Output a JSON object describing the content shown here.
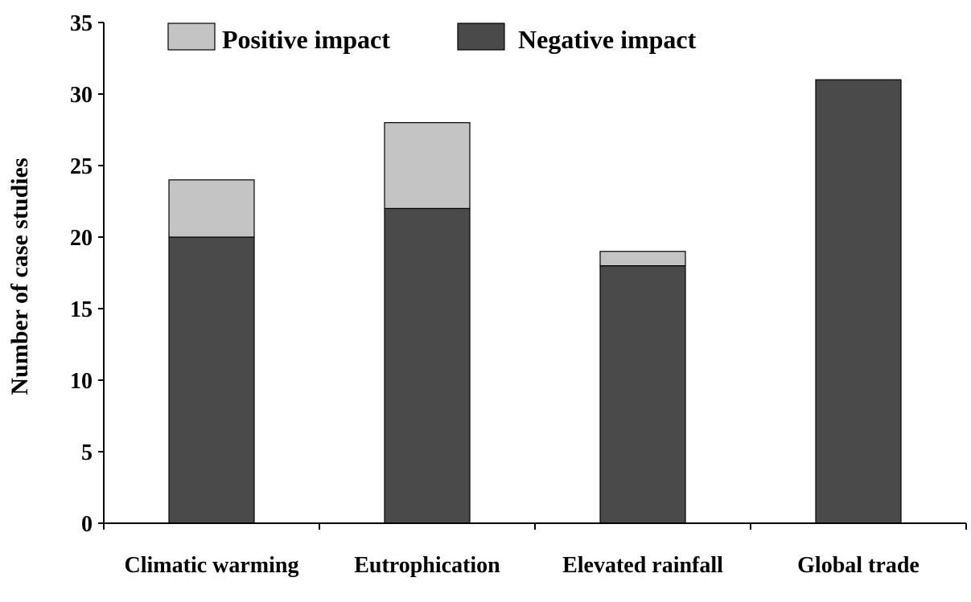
{
  "chart_data": {
    "type": "bar",
    "stacked": true,
    "title": "",
    "xlabel": "",
    "ylabel": "Number of case studies",
    "ylim": [
      0,
      35
    ],
    "yticks": [
      0,
      5,
      10,
      15,
      20,
      25,
      30,
      35
    ],
    "grid": false,
    "legend_position": "top-left",
    "categories": [
      "Climatic warming",
      "Eutrophication",
      "Elevated rainfall",
      "Global trade"
    ],
    "series": [
      {
        "name": "Negative impact",
        "color": "#4a4a4a",
        "values": [
          20,
          22,
          18,
          31
        ]
      },
      {
        "name": "Positive impact",
        "color": "#c4c4c4",
        "values": [
          4,
          6,
          1,
          0
        ]
      }
    ],
    "legend_order": [
      "Positive impact",
      "Negative impact"
    ]
  }
}
